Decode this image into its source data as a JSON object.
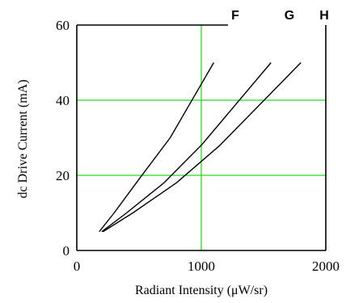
{
  "chart_data": {
    "type": "line",
    "xlabel": "Radiant Intensity (μW/sr)",
    "ylabel": "dc Drive Current (mA)",
    "xlim": [
      0,
      2000
    ],
    "ylim": [
      0,
      60
    ],
    "xticks": [
      "0",
      "1000",
      "2000"
    ],
    "yticks": [
      "0",
      "20",
      "40",
      "60"
    ],
    "grid": true,
    "grid_color": "#22dd22",
    "line_color": "#000000",
    "series": [
      {
        "name": "F",
        "x": [
          180,
          300,
          500,
          750,
          1100
        ],
        "y": [
          5,
          10,
          19,
          30,
          50
        ]
      },
      {
        "name": "G",
        "x": [
          200,
          400,
          700,
          1000,
          1560
        ],
        "y": [
          5,
          10,
          18,
          28,
          50
        ]
      },
      {
        "name": "H",
        "x": [
          210,
          450,
          800,
          1150,
          1800
        ],
        "y": [
          5,
          10,
          18,
          28,
          50
        ]
      }
    ]
  }
}
